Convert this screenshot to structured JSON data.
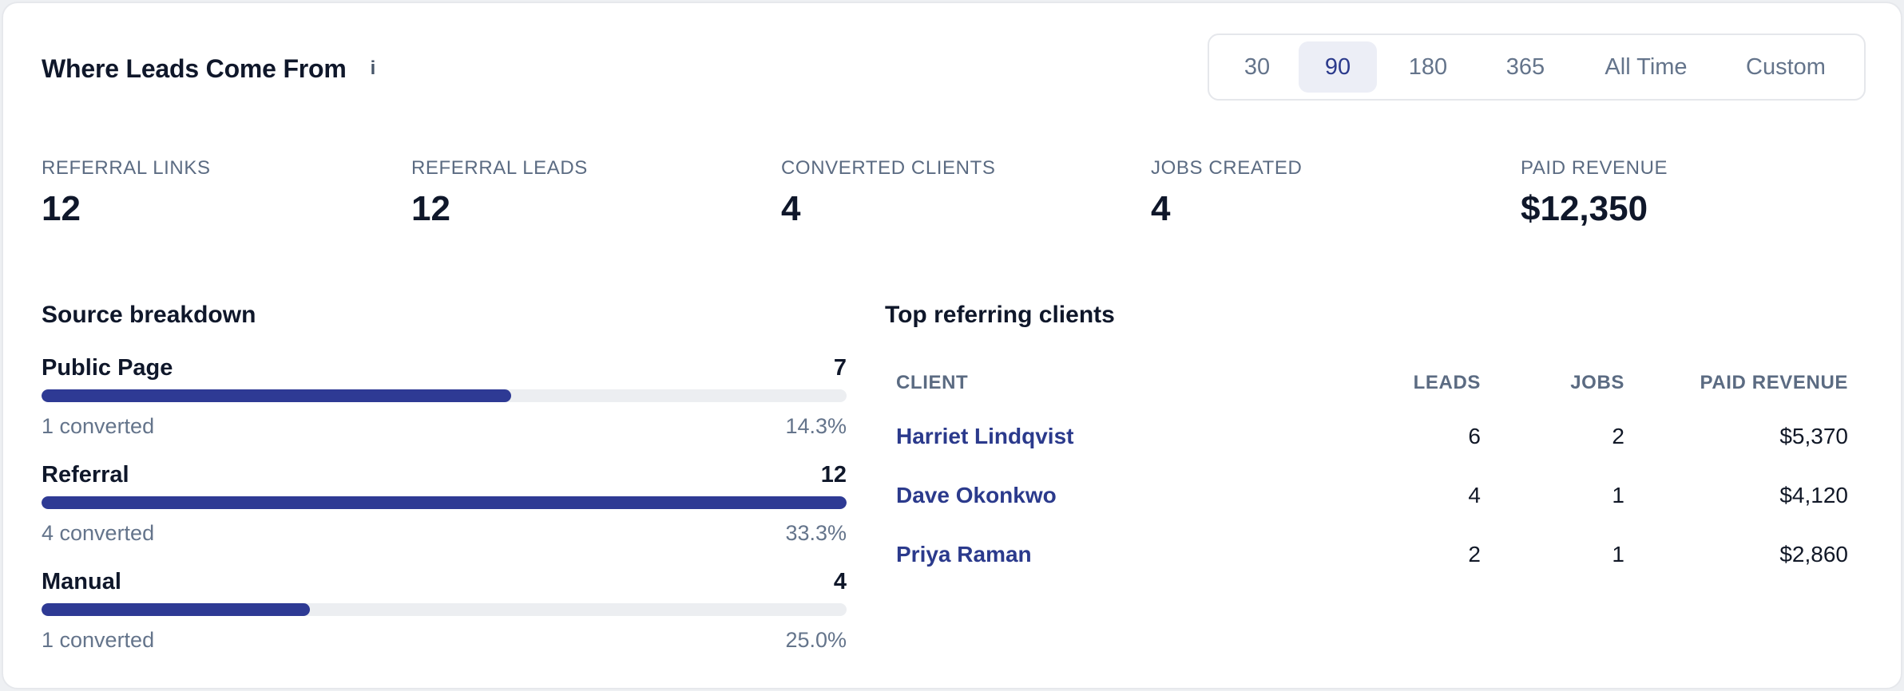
{
  "header": {
    "title": "Where Leads Come From",
    "info_icon": "i"
  },
  "ranges": [
    {
      "label": "30",
      "active": false
    },
    {
      "label": "90",
      "active": true
    },
    {
      "label": "180",
      "active": false
    },
    {
      "label": "365",
      "active": false
    },
    {
      "label": "All Time",
      "active": false
    },
    {
      "label": "Custom",
      "active": false
    }
  ],
  "stats": [
    {
      "label": "REFERRAL LINKS",
      "value": "12"
    },
    {
      "label": "REFERRAL LEADS",
      "value": "12"
    },
    {
      "label": "CONVERTED CLIENTS",
      "value": "4"
    },
    {
      "label": "JOBS CREATED",
      "value": "4"
    },
    {
      "label": "PAID REVENUE",
      "value": "$12,350"
    }
  ],
  "source_breakdown": {
    "title": "Source breakdown",
    "max": 12,
    "items": [
      {
        "name": "Public Page",
        "count": "7",
        "value": 7,
        "converted": "1 converted",
        "pct": "14.3%"
      },
      {
        "name": "Referral",
        "count": "12",
        "value": 12,
        "converted": "4 converted",
        "pct": "33.3%"
      },
      {
        "name": "Manual",
        "count": "4",
        "value": 4,
        "converted": "1 converted",
        "pct": "25.0%"
      }
    ]
  },
  "top_clients": {
    "title": "Top referring clients",
    "columns": {
      "client": "CLIENT",
      "leads": "LEADS",
      "jobs": "JOBS",
      "revenue": "PAID REVENUE"
    },
    "rows": [
      {
        "client": "Harriet Lindqvist",
        "leads": "6",
        "jobs": "2",
        "revenue": "$5,370"
      },
      {
        "client": "Dave Okonkwo",
        "leads": "4",
        "jobs": "1",
        "revenue": "$4,120"
      },
      {
        "client": "Priya Raman",
        "leads": "2",
        "jobs": "1",
        "revenue": "$2,860"
      }
    ]
  },
  "colors": {
    "accent": "#2e3a94",
    "link": "#2b3a8c",
    "muted": "#64748b",
    "track": "#eceef1"
  }
}
